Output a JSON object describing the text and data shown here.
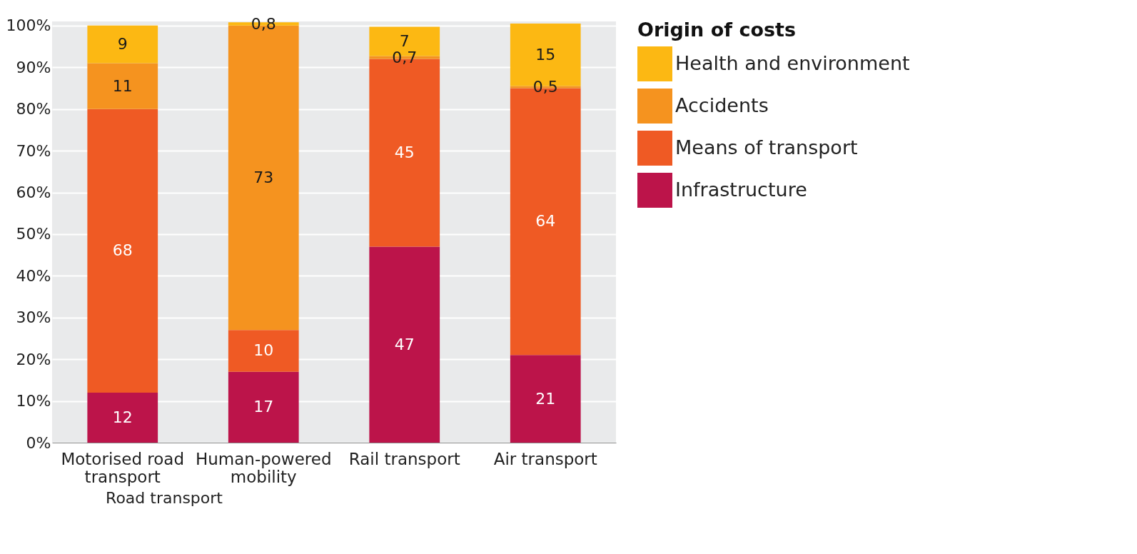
{
  "chart_data": {
    "type": "bar",
    "stacked": true,
    "categories": [
      "Motorised road transport",
      "Human-powered mobility",
      "Rail transport",
      "Air transport"
    ],
    "series": [
      {
        "name": "Infrastructure",
        "color": "#bc144a",
        "values": [
          12,
          17,
          47,
          21
        ],
        "value_labels": [
          "12",
          "17",
          "47",
          "21"
        ]
      },
      {
        "name": "Means of transport",
        "color": "#ef5a24",
        "values": [
          68,
          10,
          45,
          64
        ],
        "value_labels": [
          "68",
          "10",
          "45",
          "64"
        ]
      },
      {
        "name": "Accidents",
        "color": "#f5931f",
        "values": [
          11,
          73,
          0.7,
          0.5
        ],
        "value_labels": [
          "11",
          "73",
          "0,7",
          "0,5"
        ]
      },
      {
        "name": "Health and environment",
        "color": "#fcb813",
        "values": [
          9,
          0.8,
          7,
          15
        ],
        "value_labels": [
          "9",
          "0,8",
          "7",
          "15"
        ]
      }
    ],
    "legend_title": "Origin of costs",
    "legend": "top right",
    "ylim": [
      0,
      101
    ],
    "yticks": [
      {
        "value": 0,
        "label": "0%"
      },
      {
        "value": 10,
        "label": "10%"
      },
      {
        "value": 20,
        "label": "20%"
      },
      {
        "value": 30,
        "label": "30%"
      },
      {
        "value": 40,
        "label": "40%"
      },
      {
        "value": 50,
        "label": "50%"
      },
      {
        "value": 60,
        "label": "60%"
      },
      {
        "value": 70,
        "label": "70%"
      },
      {
        "value": 80,
        "label": "80%"
      },
      {
        "value": 90,
        "label": "90%"
      },
      {
        "value": 100,
        "label": "100%"
      }
    ],
    "grid": "y",
    "annotations": [
      "Road transport"
    ]
  }
}
